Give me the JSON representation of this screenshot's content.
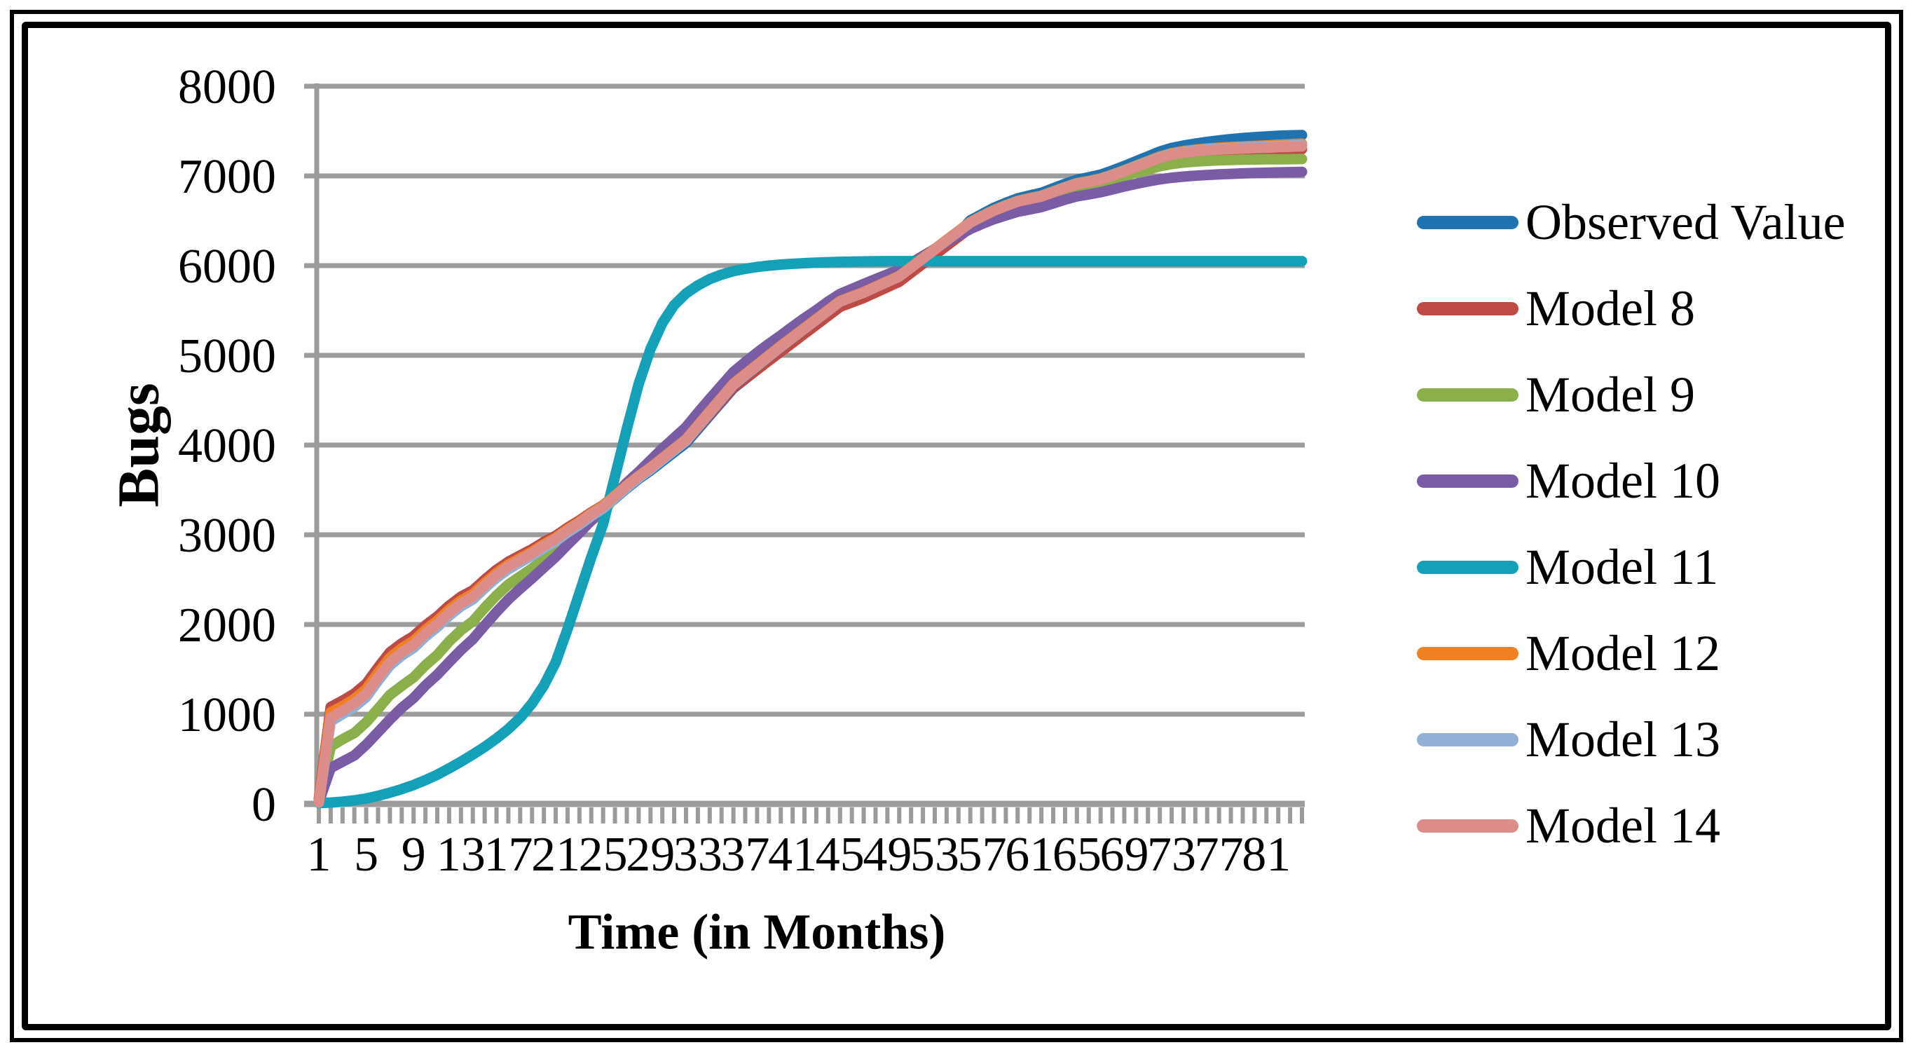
{
  "chart_data": {
    "type": "line",
    "title": "",
    "xlabel": "Time (in Months)",
    "ylabel": "Bugs",
    "ylim": [
      0,
      8000
    ],
    "y_ticks": [
      0,
      1000,
      2000,
      3000,
      4000,
      5000,
      6000,
      7000,
      8000
    ],
    "x_tick_labels": [
      "1",
      "5",
      "9",
      "13",
      "17",
      "21",
      "25",
      "29",
      "33",
      "37",
      "41",
      "45",
      "49",
      "53",
      "57",
      "61",
      "65",
      "69",
      "73",
      "77",
      "81"
    ],
    "x_tick_step": 4,
    "months_total": 84,
    "grid": "horizontal",
    "grid_color": "#9B9B9B",
    "legend_position": "right",
    "series": [
      {
        "name": "Observed Value",
        "color": "#1F73B1",
        "values": [
          30,
          1010,
          1080,
          1160,
          1270,
          1450,
          1620,
          1720,
          1800,
          1920,
          2020,
          2140,
          2240,
          2310,
          2430,
          2545,
          2638,
          2710,
          2780,
          2862,
          2935,
          3028,
          3110,
          3205,
          3290,
          3405,
          3518,
          3622,
          3715,
          3818,
          3920,
          4022,
          4175,
          4328,
          4480,
          4632,
          4736,
          4840,
          4944,
          5048,
          5150,
          5252,
          5354,
          5456,
          5558,
          5610,
          5662,
          5724,
          5786,
          5848,
          5950,
          6052,
          6154,
          6256,
          6358,
          6505,
          6575,
          6645,
          6700,
          6750,
          6782,
          6812,
          6862,
          6912,
          6958,
          6984,
          7014,
          7060,
          7110,
          7165,
          7218,
          7272,
          7312,
          7338,
          7360,
          7380,
          7396,
          7410,
          7422,
          7432,
          7440,
          7448,
          7452,
          7455
        ]
      },
      {
        "name": "Model 8",
        "color": "#BE4A46",
        "values": [
          60,
          1080,
          1150,
          1230,
          1340,
          1520,
          1690,
          1790,
          1870,
          1990,
          2090,
          2210,
          2310,
          2380,
          2500,
          2610,
          2700,
          2770,
          2840,
          2920,
          2990,
          3080,
          3160,
          3250,
          3330,
          3440,
          3550,
          3650,
          3740,
          3840,
          3940,
          4040,
          4190,
          4340,
          4490,
          4640,
          4740,
          4840,
          4940,
          5040,
          5140,
          5240,
          5340,
          5440,
          5540,
          5590,
          5640,
          5700,
          5760,
          5820,
          5920,
          6020,
          6120,
          6220,
          6320,
          6420,
          6490,
          6555,
          6610,
          6660,
          6690,
          6720,
          6770,
          6820,
          6865,
          6890,
          6920,
          6965,
          7015,
          7070,
          7125,
          7180,
          7220,
          7245,
          7263,
          7275,
          7283,
          7288,
          7291,
          7293,
          7295,
          7296,
          7297,
          7298
        ]
      },
      {
        "name": "Model 9",
        "color": "#8BAF4B",
        "values": [
          25,
          640,
          720,
          790,
          910,
          1060,
          1215,
          1315,
          1410,
          1545,
          1660,
          1810,
          1935,
          2035,
          2185,
          2325,
          2445,
          2535,
          2625,
          2725,
          2825,
          2945,
          3048,
          3155,
          3255,
          3420,
          3555,
          3680,
          3800,
          3910,
          4010,
          4110,
          4260,
          4410,
          4555,
          4700,
          4805,
          4910,
          5012,
          5114,
          5216,
          5318,
          5420,
          5522,
          5610,
          5665,
          5720,
          5780,
          5840,
          5900,
          5995,
          6090,
          6185,
          6275,
          6365,
          6450,
          6518,
          6580,
          6630,
          6678,
          6706,
          6734,
          6780,
          6826,
          6866,
          6890,
          6918,
          6958,
          6998,
          7038,
          7073,
          7108,
          7133,
          7149,
          7160,
          7168,
          7174,
          7178,
          7181,
          7183,
          7185,
          7186,
          7187,
          7188
        ]
      },
      {
        "name": "Model 10",
        "color": "#7A5CA4",
        "values": [
          20,
          400,
          470,
          540,
          660,
          800,
          940,
          1070,
          1180,
          1320,
          1440,
          1580,
          1715,
          1835,
          1990,
          2140,
          2280,
          2400,
          2515,
          2635,
          2755,
          2890,
          3020,
          3160,
          3290,
          3440,
          3580,
          3700,
          3830,
          3960,
          4080,
          4200,
          4360,
          4515,
          4665,
          4815,
          4925,
          5030,
          5128,
          5222,
          5320,
          5415,
          5505,
          5600,
          5685,
          5740,
          5795,
          5850,
          5902,
          5952,
          6030,
          6108,
          6186,
          6262,
          6336,
          6408,
          6466,
          6518,
          6560,
          6600,
          6626,
          6652,
          6694,
          6736,
          6772,
          6794,
          6818,
          6850,
          6882,
          6912,
          6938,
          6962,
          6980,
          6992,
          7002,
          7010,
          7017,
          7023,
          7028,
          7032,
          7036,
          7039,
          7042,
          7045
        ]
      },
      {
        "name": "Model 11",
        "color": "#14A0B7",
        "values": [
          10,
          15,
          25,
          40,
          60,
          90,
          125,
          165,
          210,
          265,
          325,
          395,
          470,
          550,
          635,
          730,
          835,
          960,
          1120,
          1320,
          1580,
          1950,
          2350,
          2750,
          3120,
          3650,
          4180,
          4680,
          5070,
          5360,
          5560,
          5690,
          5780,
          5850,
          5900,
          5938,
          5965,
          5985,
          6000,
          6012,
          6020,
          6027,
          6033,
          6038,
          6042,
          6045,
          6047,
          6049,
          6050,
          6050,
          6050,
          6050,
          6050,
          6050,
          6050,
          6050,
          6050,
          6050,
          6050,
          6050,
          6050,
          6050,
          6050,
          6050,
          6050,
          6050,
          6050,
          6050,
          6050,
          6050,
          6050,
          6050,
          6050,
          6050,
          6050,
          6050,
          6050,
          6050,
          6050,
          6050,
          6050,
          6050,
          6050,
          6050
        ]
      },
      {
        "name": "Model 12",
        "color": "#EF8122",
        "values": [
          25,
          1020,
          1090,
          1170,
          1280,
          1460,
          1630,
          1735,
          1818,
          1940,
          2042,
          2165,
          2268,
          2340,
          2462,
          2575,
          2668,
          2740,
          2812,
          2895,
          2968,
          3062,
          3145,
          3240,
          3325,
          3438,
          3552,
          3656,
          3750,
          3855,
          3960,
          4065,
          4220,
          4376,
          4530,
          4686,
          4791,
          4896,
          5001,
          5106,
          5206,
          5306,
          5406,
          5506,
          5606,
          5656,
          5706,
          5766,
          5826,
          5886,
          5986,
          6086,
          6186,
          6286,
          6386,
          6486,
          6555,
          6620,
          6673,
          6722,
          6752,
          6780,
          6828,
          6876,
          6920,
          6944,
          6972,
          7016,
          7063,
          7115,
          7166,
          7217,
          7254,
          7277,
          7294,
          7306,
          7315,
          7322,
          7328,
          7334,
          7340,
          7348,
          7354,
          7360
        ]
      },
      {
        "name": "Model 13",
        "color": "#90B0D5",
        "values": [
          15,
          920,
          1000,
          1080,
          1190,
          1372,
          1542,
          1652,
          1738,
          1864,
          1970,
          2096,
          2202,
          2278,
          2404,
          2520,
          2616,
          2692,
          2768,
          2854,
          2930,
          3026,
          3112,
          3208,
          3294,
          3410,
          3526,
          3632,
          3728,
          3834,
          3940,
          4046,
          4202,
          4358,
          4514,
          4670,
          4776,
          4882,
          4988,
          5094,
          5195,
          5296,
          5397,
          5498,
          5599,
          5649,
          5699,
          5759,
          5819,
          5879,
          5979,
          6079,
          6179,
          6279,
          6379,
          6479,
          6549,
          6614,
          6668,
          6716,
          6746,
          6774,
          6822,
          6870,
          6913,
          6937,
          6965,
          7009,
          7056,
          7108,
          7158,
          7208,
          7245,
          7268,
          7284,
          7296,
          7304,
          7311,
          7317,
          7323,
          7328,
          7334,
          7339,
          7345
        ]
      },
      {
        "name": "Model 14",
        "color": "#DC8D8A",
        "values": [
          20,
          960,
          1040,
          1120,
          1230,
          1410,
          1580,
          1690,
          1775,
          1900,
          2005,
          2130,
          2235,
          2310,
          2435,
          2550,
          2645,
          2720,
          2795,
          2880,
          2955,
          3050,
          3135,
          3230,
          3315,
          3430,
          3545,
          3650,
          3745,
          3850,
          3955,
          4060,
          4215,
          4370,
          4525,
          4680,
          4785,
          4890,
          4995,
          5100,
          5200,
          5300,
          5400,
          5500,
          5600,
          5650,
          5700,
          5760,
          5820,
          5880,
          5980,
          6080,
          6180,
          6280,
          6380,
          6480,
          6548,
          6612,
          6665,
          6713,
          6742,
          6770,
          6818,
          6866,
          6909,
          6932,
          6960,
          7003,
          7050,
          7101,
          7151,
          7201,
          7237,
          7259,
          7275,
          7286,
          7294,
          7300,
          7305,
          7310,
          7315,
          7320,
          7325,
          7330
        ]
      }
    ]
  }
}
